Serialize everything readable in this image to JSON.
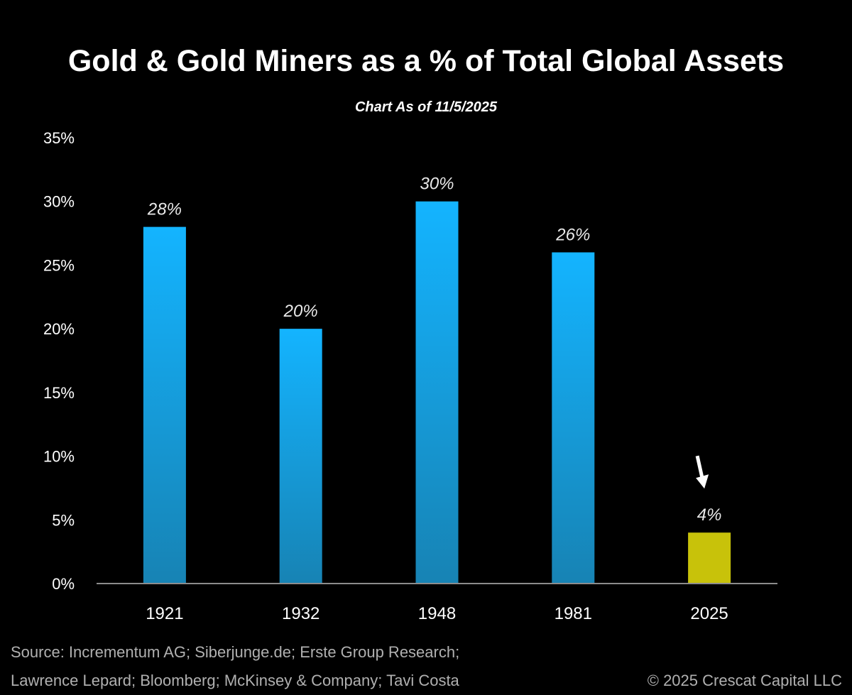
{
  "title": "Gold & Gold Miners as a % of Total Global Assets",
  "subtitle": "Chart As of 11/5/2025",
  "chart_data": {
    "type": "bar",
    "title": "Gold & Gold Miners as a % of Total Global Assets",
    "subtitle": "Chart As of 11/5/2025",
    "xlabel": "",
    "ylabel": "",
    "ylim": [
      0,
      35
    ],
    "yticks": [
      0,
      5,
      10,
      15,
      20,
      25,
      30,
      35
    ],
    "ytick_labels": [
      "0%",
      "5%",
      "10%",
      "15%",
      "20%",
      "25%",
      "30%",
      "35%"
    ],
    "categories": [
      "1921",
      "1932",
      "1948",
      "1981",
      "2025"
    ],
    "values": [
      28,
      20,
      30,
      26,
      4
    ],
    "value_labels": [
      "28%",
      "20%",
      "30%",
      "26%",
      "4%"
    ],
    "bar_colors": [
      "#1aa3e6",
      "#1aa3e6",
      "#1aa3e6",
      "#1aa3e6",
      "#c8c20a"
    ],
    "annotation": "down-arrow pointing to 2025 bar",
    "grid": false
  },
  "colors": {
    "background": "#000000",
    "bar_top": "#14b4ff",
    "bar_bottom": "#1783b4",
    "highlight": "#c8c20a",
    "axis": "#8c8c8c",
    "source_text": "#b0b0b0"
  },
  "source": {
    "line1": "Source: Incrementum AG; Siberjunge.de; Erste Group Research;",
    "line2": "Lawrence Lepard; Bloomberg; McKinsey & Company; Tavi Costa",
    "copyright": "© 2025 Crescat Capital LLC"
  }
}
